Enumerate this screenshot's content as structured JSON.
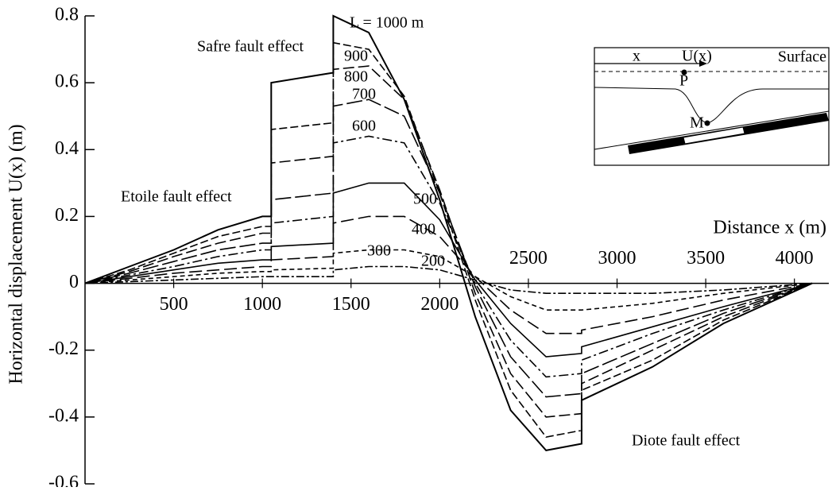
{
  "chart_data": {
    "type": "line",
    "x_label": "Distance  x  (m)",
    "y_label": "Horizontal displacement  U(x)  (m)",
    "annotations": [
      "Safre fault effect",
      "Etoile fault effect",
      "Diote fault effect"
    ],
    "xlim": [
      0,
      4100
    ],
    "ylim": [
      -0.6,
      0.8
    ],
    "xticks": [
      500,
      1000,
      1500,
      2000,
      2500,
      3000,
      3500,
      4000
    ],
    "yticks": [
      0.8,
      0.6,
      0.4,
      0.2,
      0,
      -0.2,
      -0.4,
      -0.6
    ],
    "x": [
      0,
      250,
      500,
      750,
      1000,
      1050,
      1050,
      1400,
      1400,
      1600,
      1800,
      2000,
      2200,
      2400,
      2600,
      2800,
      2800,
      3200,
      3600,
      4100
    ],
    "series": [
      {
        "name": "L = 1000 m",
        "color": "#000000",
        "dash": "none",
        "values": [
          0,
          0.05,
          0.1,
          0.16,
          0.2,
          0.2,
          0.6,
          0.63,
          0.8,
          0.75,
          0.55,
          0.25,
          -0.1,
          -0.38,
          -0.5,
          -0.48,
          -0.35,
          -0.25,
          -0.12,
          0
        ]
      },
      {
        "name": "900",
        "color": "#000000",
        "dash": "10 4",
        "values": [
          0,
          0.04,
          0.09,
          0.14,
          0.17,
          0.17,
          0.46,
          0.48,
          0.72,
          0.7,
          0.56,
          0.27,
          -0.05,
          -0.32,
          -0.46,
          -0.44,
          -0.32,
          -0.23,
          -0.11,
          0
        ]
      },
      {
        "name": "800",
        "color": "#000000",
        "dash": "14 5",
        "values": [
          0,
          0.035,
          0.08,
          0.12,
          0.15,
          0.15,
          0.36,
          0.38,
          0.64,
          0.65,
          0.55,
          0.28,
          -0.03,
          -0.27,
          -0.4,
          -0.39,
          -0.3,
          -0.2,
          -0.1,
          0
        ]
      },
      {
        "name": "700",
        "color": "#000000",
        "dash": "20 5",
        "values": [
          0,
          0.03,
          0.065,
          0.1,
          0.12,
          0.12,
          0.25,
          0.27,
          0.53,
          0.55,
          0.5,
          0.27,
          -0.01,
          -0.22,
          -0.34,
          -0.33,
          -0.27,
          -0.18,
          -0.09,
          0
        ]
      },
      {
        "name": "600",
        "color": "#000000",
        "dash": "12 4 3 4",
        "values": [
          0,
          0.025,
          0.05,
          0.08,
          0.1,
          0.1,
          0.18,
          0.2,
          0.42,
          0.44,
          0.42,
          0.24,
          0,
          -0.17,
          -0.28,
          -0.27,
          -0.23,
          -0.15,
          -0.08,
          0
        ]
      },
      {
        "name": "500",
        "color": "#000000",
        "dash": "none",
        "values": [
          0,
          0.02,
          0.04,
          0.06,
          0.07,
          0.07,
          0.11,
          0.12,
          0.27,
          0.3,
          0.3,
          0.19,
          0.01,
          -0.12,
          -0.22,
          -0.21,
          -0.19,
          -0.13,
          -0.07,
          0
        ]
      },
      {
        "name": "400",
        "color": "#000000",
        "dash": "16 6",
        "values": [
          0,
          0.015,
          0.03,
          0.04,
          0.05,
          0.05,
          0.07,
          0.08,
          0.18,
          0.2,
          0.2,
          0.14,
          0.02,
          -0.08,
          -0.15,
          -0.15,
          -0.14,
          -0.1,
          -0.05,
          0
        ]
      },
      {
        "name": "300",
        "color": "#000000",
        "dash": "6 4",
        "values": [
          0,
          0.01,
          0.02,
          0.03,
          0.035,
          0.035,
          0.04,
          0.045,
          0.09,
          0.1,
          0.1,
          0.08,
          0.02,
          -0.04,
          -0.08,
          -0.08,
          -0.08,
          -0.06,
          -0.03,
          0
        ]
      },
      {
        "name": "200",
        "color": "#000000",
        "dash": "10 3 3 3",
        "values": [
          0,
          0.005,
          0.01,
          0.015,
          0.02,
          0.02,
          0.02,
          0.02,
          0.04,
          0.05,
          0.05,
          0.04,
          0.01,
          -0.02,
          -0.03,
          -0.03,
          -0.03,
          -0.03,
          -0.02,
          0
        ]
      }
    ],
    "inset": {
      "x": "x",
      "u": "U(x)",
      "surface": "Surface",
      "p": "P",
      "m": "M"
    }
  }
}
